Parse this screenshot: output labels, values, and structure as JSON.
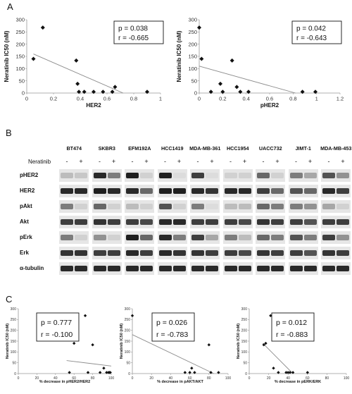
{
  "panels": {
    "a": "A",
    "b": "B",
    "c": "C"
  },
  "chart_data": [
    {
      "type": "scatter",
      "xlabel": "HER2",
      "ylabel": "Neratinib IC50 (nM)",
      "xlim": [
        0,
        1
      ],
      "ylim": [
        0,
        300
      ],
      "xticks": [
        "0",
        "0.2",
        "0.4",
        "0.6",
        "0.8",
        "1"
      ],
      "yticks": [
        "0",
        "50",
        "100",
        "150",
        "200",
        "250",
        "300"
      ],
      "x": [
        0.05,
        0.12,
        0.37,
        0.38,
        0.39,
        0.43,
        0.5,
        0.57,
        0.64,
        0.66,
        0.9
      ],
      "y": [
        140,
        268,
        133,
        38,
        5,
        5,
        5,
        5,
        5,
        25,
        5
      ],
      "trendline": [
        [
          0.05,
          160
        ],
        [
          0.72,
          0
        ]
      ],
      "annotation": {
        "p": "p = 0.038",
        "r": "r = -0.665"
      }
    },
    {
      "type": "scatter",
      "xlabel": "pHER2",
      "ylabel": "Neratinib IC50 (nM)",
      "xlim": [
        0,
        1.2
      ],
      "ylim": [
        0,
        300
      ],
      "xticks": [
        "0",
        "0.2",
        "0.4",
        "0.6",
        "0.8",
        "1",
        "1.2"
      ],
      "yticks": [
        "0",
        "50",
        "100",
        "150",
        "200",
        "250",
        "300"
      ],
      "x": [
        0.0,
        0.02,
        0.1,
        0.18,
        0.28,
        0.32,
        0.35,
        0.42,
        0.88,
        0.99,
        0.2
      ],
      "y": [
        268,
        140,
        5,
        38,
        133,
        25,
        5,
        5,
        5,
        5,
        5
      ],
      "trendline": [
        [
          0.0,
          110
        ],
        [
          0.82,
          0
        ]
      ],
      "annotation": {
        "p": "p = 0.042",
        "r": "r = -0.643"
      }
    },
    {
      "type": "scatter",
      "xlabel": "% decrease in pHER2/HER2",
      "ylabel": "Neratinib IC50 (nM)",
      "xlim": [
        0,
        100
      ],
      "ylim": [
        0,
        300
      ],
      "xticks": [
        "0",
        "20",
        "40",
        "60",
        "80",
        "100"
      ],
      "yticks": [
        "0",
        "50",
        "100",
        "150",
        "200",
        "250",
        "300"
      ],
      "x": [
        55,
        60,
        72,
        75,
        80,
        88,
        92,
        95,
        97,
        98,
        99
      ],
      "y": [
        5,
        140,
        268,
        5,
        133,
        5,
        25,
        5,
        5,
        5,
        5
      ],
      "trendline": [
        [
          52,
          60
        ],
        [
          100,
          35
        ]
      ],
      "annotation": {
        "p": "p = 0.777",
        "r": "r = -0.100"
      }
    },
    {
      "type": "scatter",
      "xlabel": "% decrease in pAKT/AKT",
      "ylabel": "Neratinib IC50 (nM)",
      "xlim": [
        0,
        100
      ],
      "ylim": [
        0,
        300
      ],
      "xticks": [
        "0",
        "20",
        "40",
        "60",
        "80",
        "100"
      ],
      "yticks": [
        "0",
        "50",
        "100",
        "150",
        "200",
        "250",
        "300"
      ],
      "x": [
        0,
        55,
        60,
        62,
        65,
        80,
        82,
        90
      ],
      "y": [
        268,
        5,
        5,
        25,
        5,
        133,
        5,
        5
      ],
      "trendline": [
        [
          0,
          180
        ],
        [
          85,
          0
        ]
      ],
      "annotation": {
        "p": "p = 0.026",
        "r": "r = -0.783"
      }
    },
    {
      "type": "scatter",
      "xlabel": "% decrease in pERK/ERK",
      "ylabel": "Neratinib IC50 (nM)",
      "xlim": [
        0,
        100
      ],
      "ylim": [
        0,
        300
      ],
      "xticks": [
        "0",
        "20",
        "40",
        "60",
        "80",
        "100"
      ],
      "yticks": [
        "0",
        "50",
        "100",
        "150",
        "200",
        "250",
        "300"
      ],
      "x": [
        15,
        17,
        22,
        25,
        30,
        38,
        40,
        42,
        45,
        60
      ],
      "y": [
        133,
        140,
        268,
        25,
        5,
        5,
        5,
        5,
        5,
        5
      ],
      "trendline": [
        [
          14,
          140
        ],
        [
          45,
          0
        ]
      ],
      "annotation": {
        "p": "p = 0.012",
        "r": "r = -0.883"
      }
    }
  ],
  "blot": {
    "cell_lines": [
      "BT474",
      "SKBR3",
      "EFM192A",
      "HCC1419",
      "MDA-MB-361",
      "HCC1954",
      "UACC732",
      "JIMT-1",
      "MDA-MB-453"
    ],
    "treatment_label": "Neratinib",
    "minus": "-",
    "plus": "+",
    "rows": [
      "pHER2",
      "HER2",
      "pAkt",
      "Akt",
      "pErk",
      "Erk",
      "α-tubulin"
    ],
    "intensity": [
      [
        [
          0.2,
          0.15
        ],
        [
          0.9,
          0.5
        ],
        [
          0.95,
          0.1
        ],
        [
          0.95,
          0.05
        ],
        [
          0.8,
          0.05
        ],
        [
          0.1,
          0.1
        ],
        [
          0.6,
          0.1
        ],
        [
          0.5,
          0.3
        ],
        [
          0.7,
          0.4
        ]
      ],
      [
        [
          0.9,
          0.9
        ],
        [
          0.95,
          0.9
        ],
        [
          0.9,
          0.6
        ],
        [
          0.95,
          0.95
        ],
        [
          0.9,
          0.85
        ],
        [
          0.9,
          0.9
        ],
        [
          0.8,
          0.6
        ],
        [
          0.7,
          0.6
        ],
        [
          0.9,
          0.8
        ]
      ],
      [
        [
          0.5,
          0.1
        ],
        [
          0.6,
          0.1
        ],
        [
          0.2,
          0.1
        ],
        [
          0.7,
          0.1
        ],
        [
          0.5,
          0.05
        ],
        [
          0.2,
          0.2
        ],
        [
          0.6,
          0.5
        ],
        [
          0.5,
          0.4
        ],
        [
          0.3,
          0.1
        ]
      ],
      [
        [
          0.8,
          0.8
        ],
        [
          0.85,
          0.8
        ],
        [
          0.8,
          0.75
        ],
        [
          0.9,
          0.9
        ],
        [
          0.8,
          0.8
        ],
        [
          0.8,
          0.75
        ],
        [
          0.85,
          0.8
        ],
        [
          0.8,
          0.7
        ],
        [
          0.8,
          0.8
        ]
      ],
      [
        [
          0.5,
          0.1
        ],
        [
          0.4,
          0.1
        ],
        [
          0.95,
          0.6
        ],
        [
          0.9,
          0.5
        ],
        [
          0.8,
          0.3
        ],
        [
          0.5,
          0.2
        ],
        [
          0.6,
          0.5
        ],
        [
          0.7,
          0.5
        ],
        [
          0.8,
          0.4
        ]
      ],
      [
        [
          0.85,
          0.85
        ],
        [
          0.8,
          0.8
        ],
        [
          0.9,
          0.8
        ],
        [
          0.9,
          0.85
        ],
        [
          0.85,
          0.8
        ],
        [
          0.8,
          0.75
        ],
        [
          0.85,
          0.8
        ],
        [
          0.8,
          0.7
        ],
        [
          0.85,
          0.8
        ]
      ],
      [
        [
          0.9,
          0.9
        ],
        [
          0.9,
          0.9
        ],
        [
          0.9,
          0.9
        ],
        [
          0.9,
          0.9
        ],
        [
          0.9,
          0.9
        ],
        [
          0.9,
          0.9
        ],
        [
          0.9,
          0.9
        ],
        [
          0.9,
          0.9
        ],
        [
          0.9,
          0.9
        ]
      ]
    ]
  }
}
